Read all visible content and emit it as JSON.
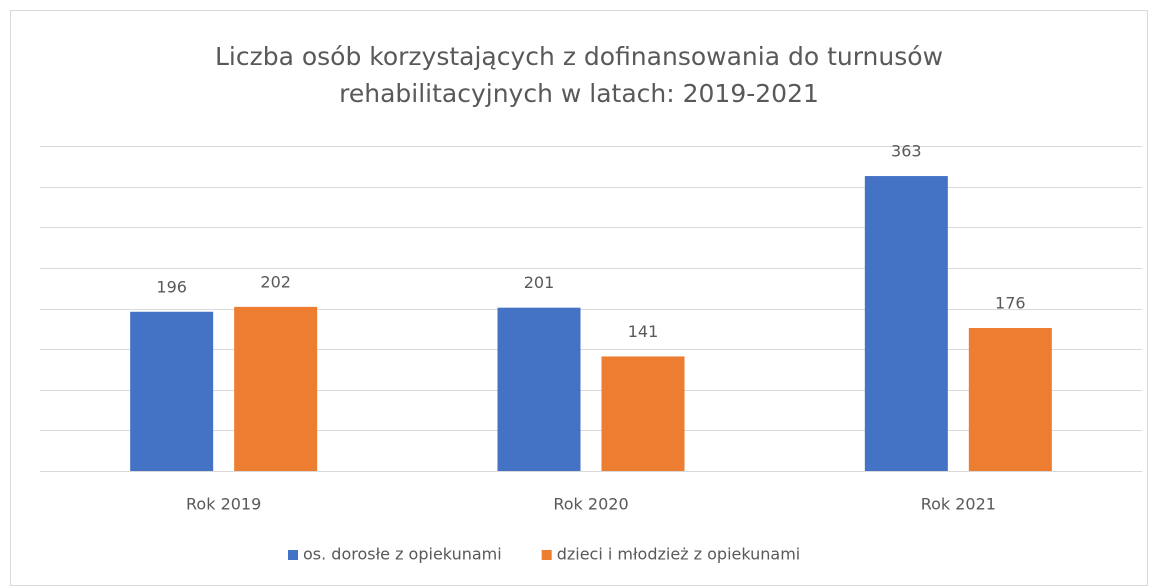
{
  "chart_data": {
    "type": "bar",
    "title": "Liczba osób korzystających z dofinansowania do turnusów rehabilitacyjnych w latach: 2019-2021",
    "categories": [
      "Rok 2019",
      "Rok 2020",
      "Rok 2021"
    ],
    "series": [
      {
        "name": "os. dorosłe z opiekunami",
        "color": "#4472c4",
        "values": [
          196,
          201,
          363
        ]
      },
      {
        "name": "dzieci i młodzież z opiekunami",
        "color": "#ed7d31",
        "values": [
          202,
          141,
          176
        ]
      }
    ],
    "ylim": [
      0,
      400
    ],
    "yticks": [
      0,
      50,
      100,
      150,
      200,
      250,
      300,
      350,
      400
    ],
    "grid": true,
    "legend": "bottom"
  }
}
